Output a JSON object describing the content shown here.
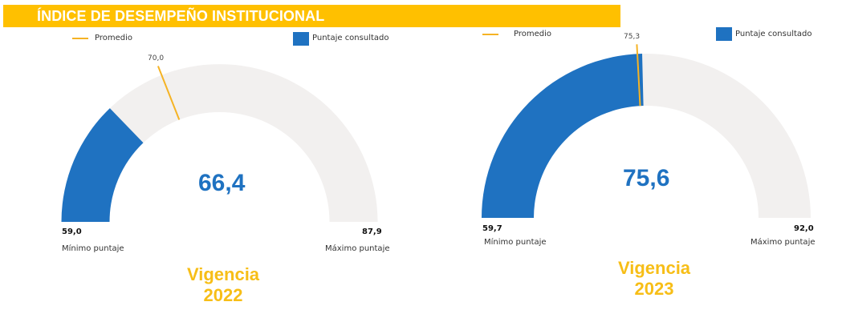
{
  "header": {
    "title": "ÍNDICE DE DESEMPEÑO INSTITUCIONAL"
  },
  "colors": {
    "header_bg": "#ffc000",
    "score": "#1f72c1",
    "average": "#f5b324",
    "track": "#f2f0ef",
    "vigencia": "#f7be17"
  },
  "chart_data": [
    {
      "type": "gauge",
      "value": 66.4,
      "value_label": "66,4",
      "min": 59.0,
      "min_label": "59,0",
      "min_caption": "Mínimo puntaje",
      "max": 87.9,
      "max_label": "87,9",
      "max_caption": "Máximo puntaje",
      "average": 70.0,
      "average_label": "70,0",
      "legend": {
        "average_label": "Promedio",
        "score_label": "Puntaje consultado"
      },
      "vigencia_label": "Vigencia",
      "year": "2022"
    },
    {
      "type": "gauge",
      "value": 75.6,
      "value_label": "75,6",
      "min": 59.7,
      "min_label": "59,7",
      "min_caption": "Mínimo puntaje",
      "max": 92.0,
      "max_label": "92,0",
      "max_caption": "Máximo puntaje",
      "average": 75.3,
      "average_label": "75,3",
      "legend": {
        "average_label": "Promedio",
        "score_label": "Puntaje consultado"
      },
      "vigencia_label": "Vigencia",
      "year": "2023"
    }
  ]
}
